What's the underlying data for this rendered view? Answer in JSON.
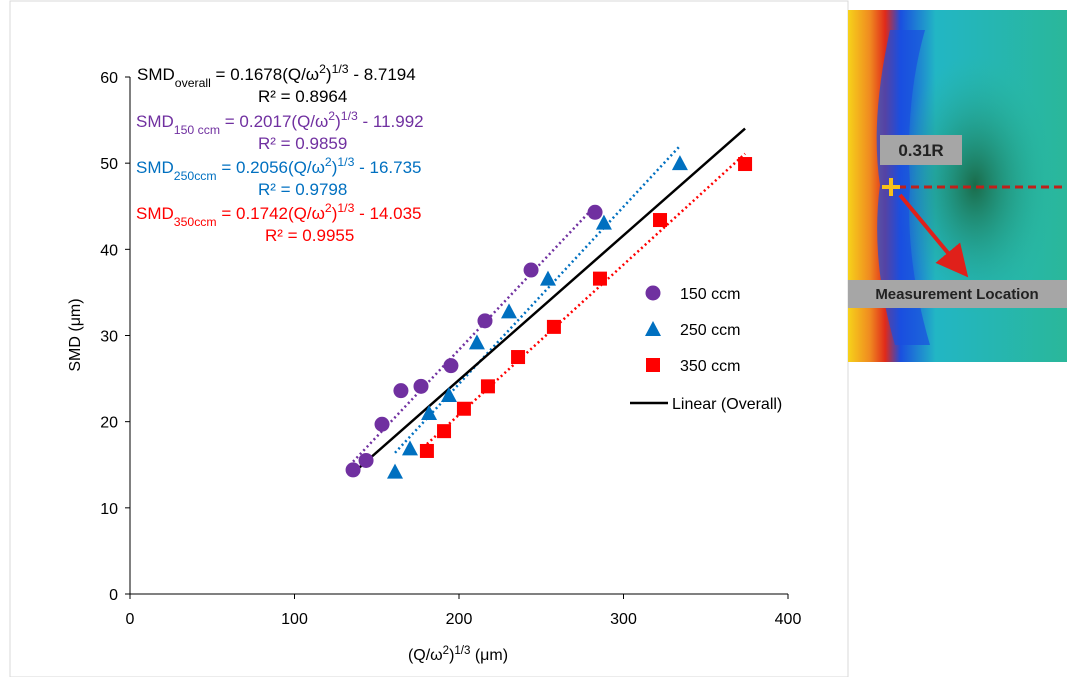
{
  "chart_data": {
    "type": "scatter",
    "xlabel": [
      {
        "t": "(Q/ω"
      },
      {
        "sup": "2"
      },
      {
        "t": ")"
      },
      {
        "sup": "1/3"
      },
      {
        "t": "  (μm)"
      }
    ],
    "ylabel": "SMD (μm)",
    "xlim": [
      0,
      400
    ],
    "xticks": [
      0,
      100,
      200,
      300,
      400
    ],
    "ylim": [
      0,
      60
    ],
    "yticks": [
      0,
      10,
      20,
      30,
      40,
      50,
      60
    ],
    "series": [
      {
        "name": "150 ccm",
        "color": "#7030a0",
        "marker": "circle",
        "x": [
          135.6,
          143.5,
          153.2,
          164.7,
          176.9,
          195.1,
          215.8,
          243.8,
          282.7
        ],
        "values": [
          14.4,
          15.5,
          19.7,
          23.6,
          24.1,
          26.5,
          31.7,
          37.6,
          44.3
        ],
        "trend": {
          "slope": 0.2017,
          "intercept": -11.992,
          "equation": [
            {
              "t": "SMD"
            },
            {
              "sub": "150 ccm"
            },
            {
              "t": " = 0.2017(Q/ω"
            },
            {
              "sup": "2"
            },
            {
              "t": ")"
            },
            {
              "sup": "1/3"
            },
            {
              "t": " - 11.992"
            }
          ],
          "r2": "R² = 0.9859"
        }
      },
      {
        "name": "250 ccm",
        "color": "#0070c0",
        "marker": "triangle",
        "x": [
          161.1,
          170.2,
          181.8,
          193.9,
          210.9,
          230.4,
          254.1,
          288.1,
          334.3
        ],
        "values": [
          14.2,
          16.9,
          21.0,
          23.1,
          29.2,
          32.8,
          36.6,
          43.1,
          50.0
        ],
        "trend": {
          "slope": 0.2056,
          "intercept": -16.735,
          "equation": [
            {
              "t": "SMD"
            },
            {
              "sub": "250ccm"
            },
            {
              "t": " = 0.2056(Q/ω"
            },
            {
              "sup": "2"
            },
            {
              "t": ")"
            },
            {
              "sup": "1/3"
            },
            {
              "t": " - 16.735"
            }
          ],
          "r2": "R² = 0.9798"
        }
      },
      {
        "name": "350 ccm",
        "color": "#ff0000",
        "marker": "square",
        "x": [
          180.5,
          190.9,
          203.0,
          217.6,
          235.9,
          257.7,
          285.7,
          322.2,
          373.9
        ],
        "values": [
          16.6,
          18.9,
          21.5,
          24.1,
          27.5,
          31.0,
          36.6,
          43.4,
          49.9
        ],
        "trend": {
          "slope": 0.1742,
          "intercept": -14.035,
          "equation": [
            {
              "t": "SMD"
            },
            {
              "sub": "350ccm"
            },
            {
              "t": " = 0.1742(Q/ω"
            },
            {
              "sup": "2"
            },
            {
              "t": ")"
            },
            {
              "sup": "1/3"
            },
            {
              "t": " - 14.035"
            }
          ],
          "r2": "R² = 0.9955"
        }
      }
    ],
    "overall_trend": {
      "name": "Linear (Overall)",
      "color": "#000000",
      "slope": 0.1678,
      "intercept": -8.7194,
      "equation": [
        {
          "t": "SMD"
        },
        {
          "sub": "overall"
        },
        {
          "t": " = 0.1678(Q/ω"
        },
        {
          "sup": "2"
        },
        {
          "t": ")"
        },
        {
          "sup": "1/3"
        },
        {
          "t": " - 8.7194"
        }
      ],
      "r2": "R² = 0.8964"
    }
  },
  "image": {
    "labels": [
      "0.31R",
      "Measurement Location"
    ]
  }
}
